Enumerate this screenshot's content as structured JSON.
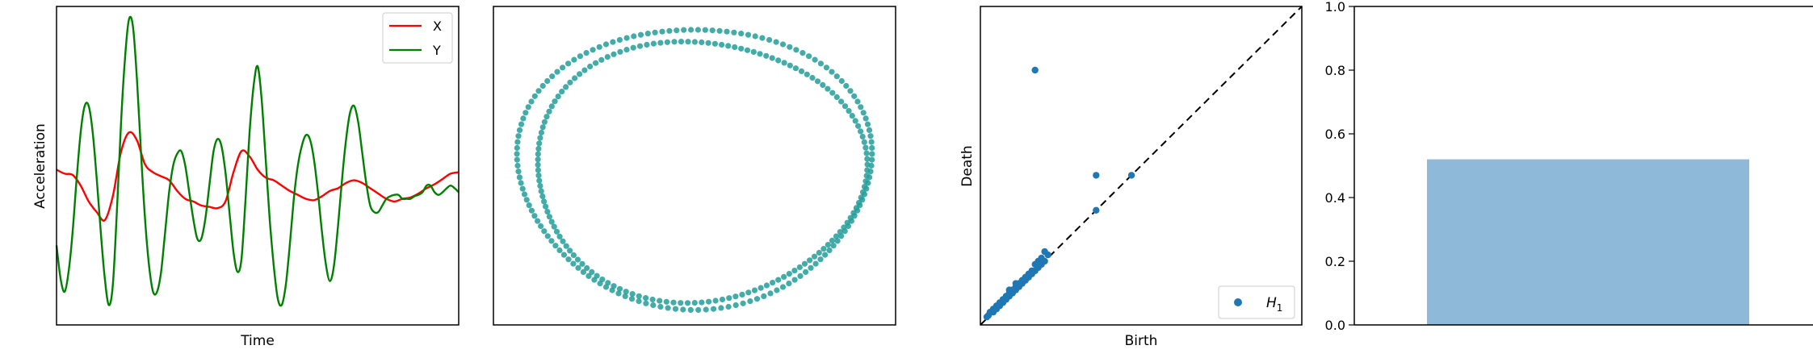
{
  "charts": [
    {
      "id": "signal",
      "chart_data": {
        "type": "line",
        "xlabel": "Time",
        "ylabel": "Acceleration",
        "xlim": [
          0,
          100
        ],
        "ylim": [
          -1.15,
          1.25
        ],
        "grid": false,
        "legend": "top-right",
        "series": [
          {
            "name": "X",
            "color": "#ff0000",
            "x": [
              0,
              2,
              4,
              6,
              8,
              10,
              12,
              14,
              16,
              18,
              20,
              22,
              24,
              26,
              28,
              30,
              32,
              34,
              36,
              38,
              40,
              42,
              44,
              46,
              48,
              50,
              52,
              54,
              56,
              58,
              60,
              62,
              64,
              66,
              68,
              70,
              72,
              74,
              76,
              78,
              80,
              82,
              84,
              86,
              88,
              90,
              92,
              94,
              96,
              98,
              100
            ],
            "y": [
              0.02,
              -0.01,
              -0.02,
              -0.1,
              -0.22,
              -0.3,
              -0.36,
              -0.18,
              0.15,
              0.3,
              0.24,
              0.06,
              0.0,
              -0.03,
              -0.06,
              -0.14,
              -0.2,
              -0.22,
              -0.25,
              -0.26,
              -0.27,
              -0.22,
              0.0,
              0.16,
              0.12,
              0.02,
              -0.04,
              -0.06,
              -0.1,
              -0.14,
              -0.17,
              -0.2,
              -0.21,
              -0.18,
              -0.14,
              -0.12,
              -0.08,
              -0.06,
              -0.08,
              -0.12,
              -0.16,
              -0.2,
              -0.22,
              -0.2,
              -0.19,
              -0.16,
              -0.12,
              -0.09,
              -0.05,
              -0.01,
              0.0
            ]
          },
          {
            "name": "Y",
            "color": "#008000",
            "x": [
              0,
              1,
              2,
              3,
              4,
              5,
              6,
              7,
              8,
              9,
              10,
              11,
              12,
              13,
              14,
              15,
              16,
              17,
              18,
              19,
              20,
              21,
              22,
              23,
              24,
              25,
              26,
              27,
              28,
              29,
              30,
              31,
              32,
              33,
              34,
              35,
              36,
              37,
              38,
              39,
              40,
              41,
              42,
              43,
              44,
              45,
              46,
              47,
              48,
              49,
              50,
              51,
              52,
              53,
              54,
              55,
              56,
              57,
              58,
              59,
              60,
              61,
              62,
              63,
              64,
              65,
              66,
              67,
              68,
              69,
              70,
              71,
              72,
              73,
              74,
              75,
              76,
              77,
              78,
              79,
              80,
              81,
              82,
              83,
              84,
              85,
              86,
              87,
              88,
              89,
              90,
              91,
              92,
              93,
              94,
              95,
              96,
              97,
              98,
              99,
              100
            ],
            "y": [
              -0.55,
              -0.8,
              -0.9,
              -0.75,
              -0.45,
              -0.05,
              0.3,
              0.5,
              0.5,
              0.3,
              -0.05,
              -0.45,
              -0.8,
              -1.0,
              -0.85,
              -0.3,
              0.35,
              0.85,
              1.15,
              1.1,
              0.7,
              0.15,
              -0.35,
              -0.7,
              -0.9,
              -0.9,
              -0.75,
              -0.45,
              -0.15,
              0.05,
              0.14,
              0.16,
              0.05,
              -0.15,
              -0.35,
              -0.5,
              -0.5,
              -0.35,
              -0.1,
              0.15,
              0.25,
              0.2,
              0.0,
              -0.3,
              -0.6,
              -0.75,
              -0.65,
              -0.2,
              0.3,
              0.65,
              0.8,
              0.55,
              0.1,
              -0.35,
              -0.7,
              -0.95,
              -1.0,
              -0.85,
              -0.55,
              -0.2,
              0.05,
              0.2,
              0.28,
              0.25,
              0.1,
              -0.15,
              -0.45,
              -0.7,
              -0.82,
              -0.7,
              -0.4,
              -0.05,
              0.25,
              0.45,
              0.5,
              0.38,
              0.15,
              -0.08,
              -0.25,
              -0.3,
              -0.3,
              -0.25,
              -0.2,
              -0.18,
              -0.17,
              -0.17,
              -0.2,
              -0.2,
              -0.2,
              -0.18,
              -0.17,
              -0.15,
              -0.1,
              -0.1,
              -0.15,
              -0.17,
              -0.15,
              -0.12,
              -0.1,
              -0.12,
              -0.15
            ]
          }
        ]
      }
    },
    {
      "id": "cloud",
      "chart_data": {
        "type": "scatter",
        "xlabel": "",
        "ylabel": "",
        "xlim": [
          -1.08,
          1.08
        ],
        "ylim": [
          -1.08,
          1.08
        ],
        "grid": false,
        "color": "#239e99",
        "turns": 2,
        "points_per_turn": 150
      }
    },
    {
      "id": "persistence",
      "chart_data": {
        "type": "scatter",
        "xlabel": "Birth",
        "ylabel": "Death",
        "xlim": [
          0,
          1
        ],
        "ylim": [
          0,
          1
        ],
        "grid": false,
        "legend": "bottom-right",
        "legend_label": "H",
        "legend_sub": "1",
        "diagonal": true,
        "series": [
          {
            "name": "H1",
            "color": "#1f77b4",
            "points": [
              [
                0.17,
                0.8
              ],
              [
                0.36,
                0.47
              ],
              [
                0.47,
                0.47
              ],
              [
                0.36,
                0.36
              ],
              [
                0.2,
                0.23
              ],
              [
                0.18,
                0.2
              ],
              [
                0.21,
                0.22
              ],
              [
                0.15,
                0.16
              ],
              [
                0.14,
                0.15
              ],
              [
                0.16,
                0.17
              ],
              [
                0.13,
                0.13
              ],
              [
                0.12,
                0.13
              ],
              [
                0.11,
                0.12
              ],
              [
                0.1,
                0.11
              ],
              [
                0.09,
                0.1
              ],
              [
                0.08,
                0.09
              ],
              [
                0.07,
                0.08
              ],
              [
                0.06,
                0.07
              ],
              [
                0.05,
                0.06
              ],
              [
                0.04,
                0.05
              ],
              [
                0.03,
                0.04
              ],
              [
                0.05,
                0.05
              ],
              [
                0.07,
                0.07
              ],
              [
                0.09,
                0.09
              ],
              [
                0.11,
                0.11
              ],
              [
                0.12,
                0.12
              ],
              [
                0.14,
                0.14
              ],
              [
                0.15,
                0.15
              ],
              [
                0.17,
                0.17
              ],
              [
                0.18,
                0.18
              ],
              [
                0.19,
                0.19
              ],
              [
                0.2,
                0.2
              ],
              [
                0.06,
                0.06
              ],
              [
                0.08,
                0.08
              ],
              [
                0.1,
                0.1
              ],
              [
                0.13,
                0.14
              ],
              [
                0.16,
                0.16
              ],
              [
                0.04,
                0.04
              ],
              [
                0.025,
                0.03
              ],
              [
                0.02,
                0.025
              ],
              [
                0.11,
                0.13
              ],
              [
                0.09,
                0.11
              ],
              [
                0.19,
                0.21
              ],
              [
                0.17,
                0.19
              ]
            ]
          }
        ]
      }
    },
    {
      "id": "score",
      "chart_data": {
        "type": "bar",
        "categories": [
          ""
        ],
        "values": [
          0.52
        ],
        "ylim": [
          0,
          1
        ],
        "yticks": [
          "0.0",
          "0.2",
          "0.4",
          "0.6",
          "0.8",
          "1.0"
        ],
        "grid": false,
        "color": "#8fb9d9"
      }
    }
  ]
}
